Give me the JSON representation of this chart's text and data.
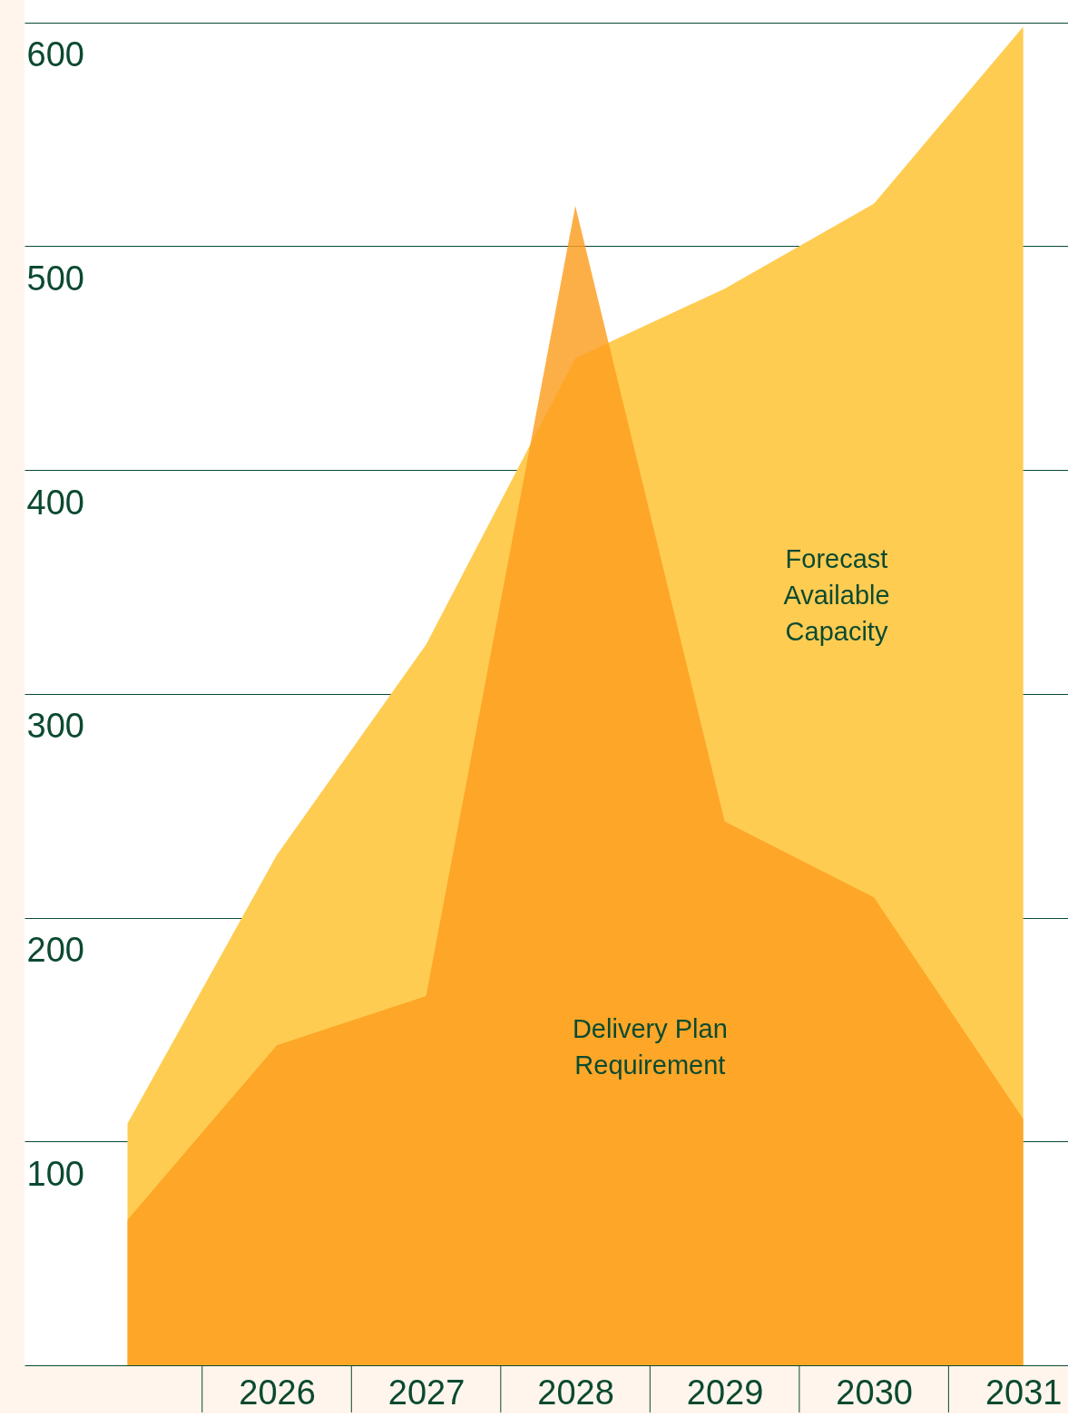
{
  "chart_data": {
    "type": "area",
    "categories": [
      null,
      "2026",
      "2027",
      "2028",
      "2029",
      "2030",
      "2031"
    ],
    "series": [
      {
        "name": "Forecast Available Capacity",
        "color": "#ffcc52",
        "values": [
          108,
          228,
          322,
          450,
          481,
          519,
          598
        ]
      },
      {
        "name": "Delivery Plan Requirement",
        "color": "#fd9e1f",
        "values": [
          65,
          143,
          165,
          518,
          243,
          209,
          110
        ]
      }
    ],
    "ylim": [
      0,
      610
    ],
    "yticks": [
      100,
      200,
      300,
      400,
      500,
      600
    ],
    "grid": "y",
    "legend": false
  }
}
